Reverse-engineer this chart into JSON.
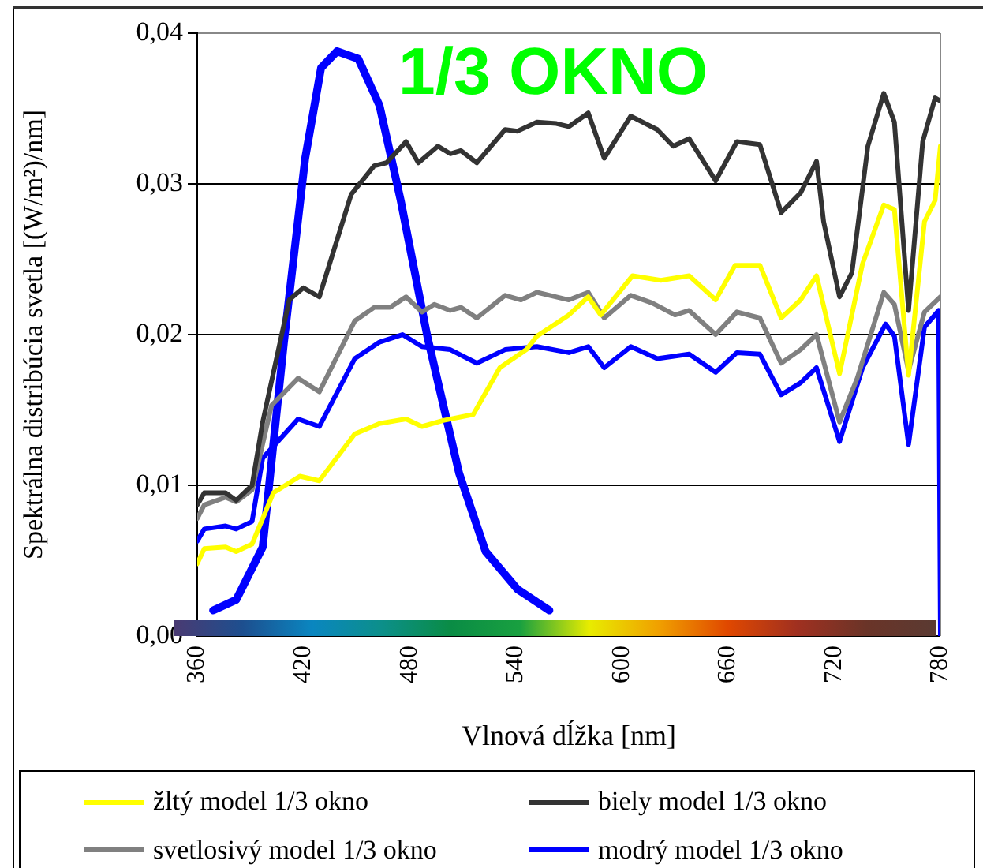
{
  "chart_data": {
    "type": "line",
    "title": "1/3 OKNO",
    "xlabel": "Vlnová dĺžka [nm]",
    "ylabel": "Spektrálna distribúcia svetla [(W/m²)/nm]",
    "xlim": [
      360,
      780
    ],
    "xticks": [
      360,
      420,
      480,
      540,
      600,
      660,
      720,
      780
    ],
    "ylim": [
      0,
      0.04
    ],
    "yticks": [
      {
        "value": 0,
        "label": "0,00"
      },
      {
        "value": 0.01,
        "label": "0,01"
      },
      {
        "value": 0.02,
        "label": "0,02"
      },
      {
        "value": 0.03,
        "label": "0,03"
      },
      {
        "value": 0.04,
        "label": "0,04"
      }
    ],
    "grid": "y",
    "legend": "bottom",
    "marker": "none",
    "line_style": "solid",
    "series": [
      {
        "name": "žltý model 1/3 okno",
        "color": "#ffff00",
        "x": [
          360,
          364,
          376,
          382,
          391,
          403,
          418,
          429,
          449,
          463,
          478,
          487,
          499,
          516,
          531,
          546,
          552,
          570,
          581,
          588,
          606,
          622,
          638,
          653,
          664,
          678,
          690,
          701,
          710,
          723,
          736,
          748,
          754,
          762,
          771,
          777,
          780
        ],
        "values": [
          0.0048,
          0.0058,
          0.0059,
          0.0056,
          0.0061,
          0.0095,
          0.0106,
          0.0103,
          0.0134,
          0.0141,
          0.0144,
          0.0139,
          0.0143,
          0.0147,
          0.0178,
          0.019,
          0.0199,
          0.0213,
          0.0225,
          0.0213,
          0.0239,
          0.0236,
          0.0239,
          0.0223,
          0.0246,
          0.0246,
          0.0211,
          0.0223,
          0.0239,
          0.0174,
          0.0247,
          0.0286,
          0.0283,
          0.0173,
          0.0275,
          0.0289,
          0.0325
        ]
      },
      {
        "name": "biely model 1/3 okno",
        "color": "#333333",
        "x": [
          360,
          364,
          376,
          382,
          391,
          397,
          412,
          420,
          429,
          447,
          460,
          467,
          478,
          485,
          496,
          503,
          509,
          518,
          534,
          541,
          552,
          563,
          570,
          581,
          590,
          605,
          620,
          629,
          638,
          653,
          665,
          678,
          690,
          701,
          710,
          714,
          723,
          730,
          739,
          748,
          754,
          762,
          770,
          777,
          780
        ],
        "values": [
          0.0087,
          0.0095,
          0.0095,
          0.009,
          0.01,
          0.0142,
          0.0223,
          0.0231,
          0.0225,
          0.0293,
          0.0312,
          0.0314,
          0.0328,
          0.0314,
          0.0325,
          0.032,
          0.0322,
          0.0314,
          0.0336,
          0.0335,
          0.0341,
          0.034,
          0.0338,
          0.0347,
          0.0317,
          0.0345,
          0.0336,
          0.0325,
          0.033,
          0.0302,
          0.0328,
          0.0326,
          0.0281,
          0.0294,
          0.0315,
          0.0275,
          0.0225,
          0.0241,
          0.0325,
          0.036,
          0.0341,
          0.0216,
          0.0328,
          0.0357,
          0.0355
        ]
      },
      {
        "name": "svetlosivý model 1/3 okno",
        "color": "#808080",
        "x": [
          360,
          364,
          376,
          382,
          391,
          402,
          417,
          429,
          449,
          460,
          469,
          478,
          487,
          494,
          503,
          509,
          518,
          534,
          543,
          552,
          570,
          581,
          590,
          605,
          617,
          630,
          638,
          653,
          665,
          678,
          690,
          701,
          710,
          723,
          733,
          748,
          754,
          762,
          771,
          780
        ],
        "values": [
          0.0078,
          0.0087,
          0.0092,
          0.0089,
          0.0097,
          0.0153,
          0.0171,
          0.0162,
          0.0209,
          0.0218,
          0.0218,
          0.0225,
          0.0215,
          0.022,
          0.0216,
          0.0218,
          0.0211,
          0.0226,
          0.0223,
          0.0228,
          0.0223,
          0.0228,
          0.0211,
          0.0226,
          0.0221,
          0.0213,
          0.0216,
          0.02,
          0.0215,
          0.0211,
          0.0181,
          0.019,
          0.02,
          0.0142,
          0.0171,
          0.0228,
          0.022,
          0.0176,
          0.0215,
          0.0225
        ]
      },
      {
        "name": "modrý model 1/3 okno",
        "color": "#0000ff",
        "x": [
          360,
          364,
          376,
          382,
          391,
          397,
          417,
          429,
          449,
          463,
          476,
          487,
          503,
          518,
          534,
          552,
          570,
          581,
          590,
          605,
          620,
          638,
          653,
          665,
          678,
          690,
          701,
          710,
          723,
          736,
          749,
          754,
          762,
          771,
          779,
          780
        ],
        "values": [
          0.0063,
          0.0071,
          0.0073,
          0.0071,
          0.0076,
          0.0118,
          0.0144,
          0.0139,
          0.0184,
          0.0195,
          0.02,
          0.0192,
          0.019,
          0.0181,
          0.019,
          0.0192,
          0.0188,
          0.0192,
          0.0178,
          0.0192,
          0.0184,
          0.0187,
          0.0175,
          0.0188,
          0.0187,
          0.016,
          0.0168,
          0.0178,
          0.0129,
          0.0178,
          0.0207,
          0.0199,
          0.0127,
          0.0205,
          0.0216,
          0
        ]
      },
      {
        "color": "#0000ff",
        "x": [
          369,
          382,
          397,
          409,
          421,
          430,
          439,
          451,
          463,
          475,
          490,
          508,
          523,
          541,
          559
        ],
        "values": [
          0.0017,
          0.0024,
          0.0059,
          0.0195,
          0.0317,
          0.0377,
          0.0388,
          0.0383,
          0.0352,
          0.0289,
          0.0199,
          0.0108,
          0.0056,
          0.0031,
          0.0017
        ]
      }
    ]
  }
}
